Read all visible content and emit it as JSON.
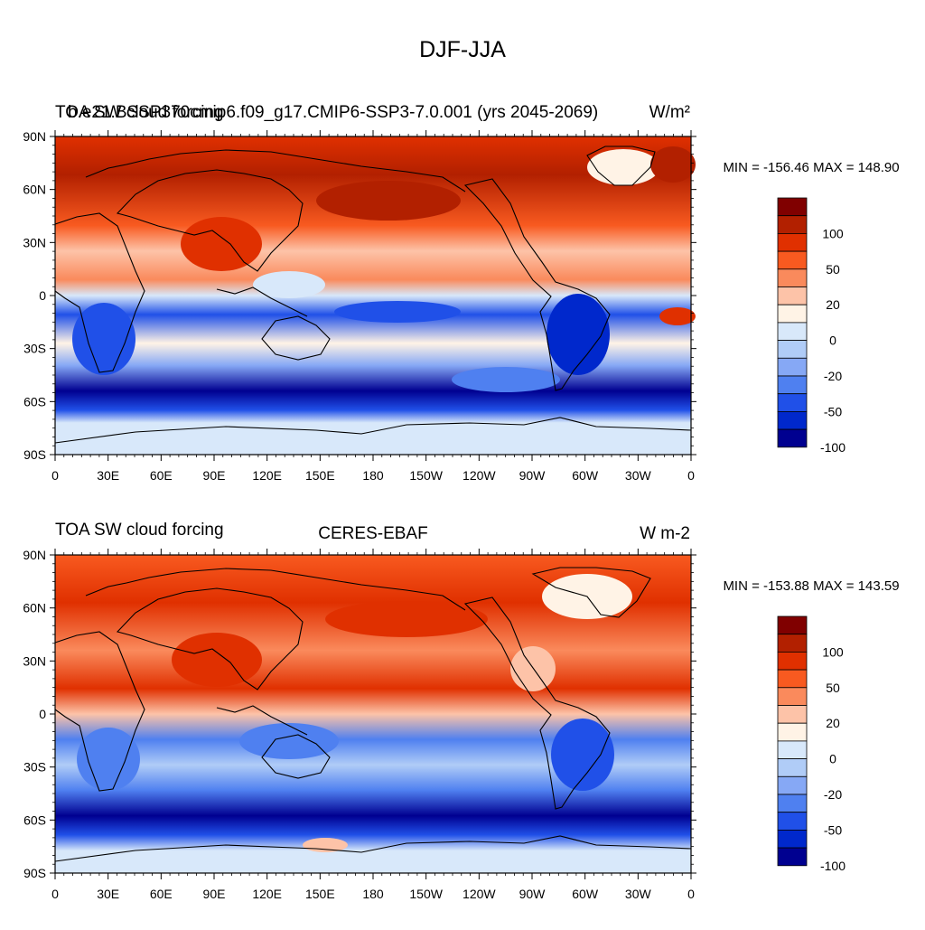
{
  "main_title": "DJF-JJA",
  "lat_labels": [
    "90N",
    "60N",
    "30N",
    "0",
    "30S",
    "60S",
    "90S"
  ],
  "lon_labels": [
    "0",
    "30E",
    "60E",
    "90E",
    "120E",
    "150E",
    "180",
    "150W",
    "120W",
    "90W",
    "60W",
    "30W",
    "0"
  ],
  "colorbar": {
    "colors": [
      "#800000",
      "#b22000",
      "#e03000",
      "#f85a20",
      "#fa8a5c",
      "#fdc3a8",
      "#fff3e6",
      "#d8e8fa",
      "#b0ccf7",
      "#86a8f5",
      "#4f80f0",
      "#2050e8",
      "#0028cc",
      "#000090"
    ],
    "labels": [
      "100",
      "50",
      "20",
      "0",
      "-20",
      "-50",
      "-100"
    ]
  },
  "panels": [
    {
      "variable": "TOA SW cloud forcing",
      "case": "b.e21.BSSP370cmip6.f09_g17.CMIP6-SSP3-7.0.001 (yrs 2045-2069)",
      "units": "W/m²",
      "stats": "MIN = -156.46 MAX = 148.90"
    },
    {
      "variable": "TOA SW cloud forcing",
      "case": "CERES-EBAF",
      "units": "W m-2",
      "stats": "MIN = -153.88 MAX = 143.59"
    }
  ]
}
